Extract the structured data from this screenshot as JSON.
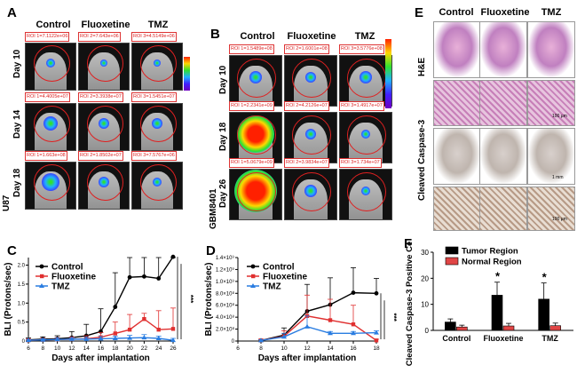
{
  "panel_labels": {
    "a": "A",
    "b": "B",
    "c": "C",
    "d": "D",
    "e": "E",
    "f": "F"
  },
  "panel_a": {
    "headers": [
      "Control",
      "Fluoxetine",
      "TMZ"
    ],
    "days": [
      "Day 10",
      "Day 14",
      "Day 18"
    ],
    "cell_line": "U87",
    "roi": [
      [
        "ROI 1=7.1122e+06",
        "ROI 2=7.643e+06",
        "ROI 3=4.5149e+06"
      ],
      [
        "ROI 1=4.4005e+07",
        "ROI 2=3.3938e+07",
        "ROI 3=1.5451e+07"
      ],
      [
        "ROI 1=1.663e+08",
        "ROI 2=1.8502e+07",
        "ROI 3=7.5767e+06"
      ]
    ]
  },
  "panel_b": {
    "headers": [
      "Control",
      "Fluoxetine",
      "TMZ"
    ],
    "days": [
      "Day 10",
      "Day 18",
      "Day 26"
    ],
    "cell_line": "GBM8401",
    "roi": [
      [
        "ROI 1=1.5489e+08",
        "ROI 2=1.6001e+08",
        "ROI 3=3.5776e+08"
      ],
      [
        "ROI 1=2.2341e+09",
        "ROI 2=4.2126e+07",
        "ROI 3=1.4917e+07"
      ],
      [
        "ROI 1=5.0679e+09",
        "ROI 2=3.9834e+07",
        "ROI 3=1.734e+07"
      ]
    ]
  },
  "panel_e": {
    "headers": [
      "Control",
      "Fluoxetine",
      "TMZ"
    ],
    "row1": "H&E",
    "row2": "Cleaved Caspase-3",
    "scale_big": "1 mm",
    "scale_small": "100 µm"
  },
  "chart_data": [
    {
      "panel": "C",
      "type": "line",
      "xlabel": "Days after implantation",
      "ylabel": "BLI (Protons/sec)",
      "x": [
        6,
        8,
        10,
        12,
        14,
        16,
        18,
        20,
        22,
        24,
        26
      ],
      "xticks": [
        6,
        8,
        10,
        12,
        14,
        16,
        18,
        20,
        22,
        24,
        26
      ],
      "ylim": [
        0,
        2.2
      ],
      "series": [
        {
          "name": "Control",
          "color": "#000000",
          "values": [
            0.03,
            0.05,
            0.06,
            0.09,
            0.14,
            0.25,
            0.9,
            1.68,
            1.7,
            1.65,
            2.22
          ],
          "errors": [
            0.05,
            0.06,
            0.08,
            0.16,
            0.3,
            0.6,
            0.9,
            1.5,
            1.5,
            1.55,
            1.1
          ]
        },
        {
          "name": "Fluoxetine",
          "color": "#e03030",
          "values": [
            0.02,
            0.03,
            0.04,
            0.05,
            0.06,
            0.1,
            0.2,
            0.3,
            0.58,
            0.3,
            0.32
          ],
          "errors": [
            0.03,
            0.04,
            0.05,
            0.06,
            0.08,
            0.12,
            0.3,
            0.4,
            0.15,
            0.5,
            0.55
          ]
        },
        {
          "name": "TMZ",
          "color": "#2a7de1",
          "values": [
            0.02,
            0.03,
            0.04,
            0.05,
            0.05,
            0.06,
            0.07,
            0.08,
            0.09,
            0.07,
            0.02
          ],
          "errors": [
            0.02,
            0.03,
            0.04,
            0.04,
            0.05,
            0.06,
            0.06,
            0.07,
            0.08,
            0.06,
            0.05
          ]
        }
      ],
      "significance": "***"
    },
    {
      "panel": "D",
      "type": "line",
      "xlabel": "Days after implantation",
      "ylabel": "BLI (Protons/sec)",
      "x": [
        8,
        10,
        12,
        14,
        16,
        18
      ],
      "xticks": [
        6,
        8,
        10,
        12,
        14,
        16,
        18
      ],
      "ylim": [
        0,
        14
      ],
      "yticks": [
        "0",
        "2.0×10⁸",
        "4.0×10⁸",
        "6.0×10⁸",
        "8.0×10⁸",
        "1.0×10⁹",
        "1.2×10⁹",
        "1.4×10⁹"
      ],
      "series": [
        {
          "name": "Control",
          "color": "#000000",
          "values": [
            0.1,
            1.0,
            5.0,
            6.1,
            8.1,
            8.0
          ],
          "errors": [
            0.2,
            1.2,
            4.5,
            4.5,
            4.2,
            2.5
          ]
        },
        {
          "name": "Fluoxetine",
          "color": "#e03030",
          "values": [
            0.1,
            0.8,
            4.2,
            3.5,
            2.8,
            0.1
          ],
          "errors": [
            0.2,
            0.9,
            3.5,
            3.5,
            3.2,
            0.2
          ]
        },
        {
          "name": "TMZ",
          "color": "#2a7de1",
          "values": [
            0.1,
            0.7,
            2.4,
            1.3,
            1.3,
            1.4
          ],
          "errors": [
            0.1,
            0.6,
            1.8,
            0.3,
            0.3,
            0.3
          ]
        }
      ],
      "significance": "***"
    },
    {
      "panel": "F",
      "type": "bar",
      "ylabel": "Cleaved Caspase-3 Positive Cells (%)",
      "categories": [
        "Control",
        "Fluoxetine",
        "TMZ"
      ],
      "ylim": [
        0,
        30
      ],
      "yticks": [
        0,
        10,
        20,
        30
      ],
      "series": [
        {
          "name": "Tumor Region",
          "color": "#000000",
          "values": [
            3.2,
            13.5,
            12.0
          ],
          "errors": [
            1.2,
            5.0,
            6.2
          ]
        },
        {
          "name": "Normal Region",
          "color": "#e04545",
          "values": [
            1.3,
            1.7,
            1.8
          ],
          "errors": [
            0.7,
            1.0,
            1.0
          ]
        }
      ],
      "annotations": [
        "",
        "*",
        "*"
      ]
    }
  ]
}
